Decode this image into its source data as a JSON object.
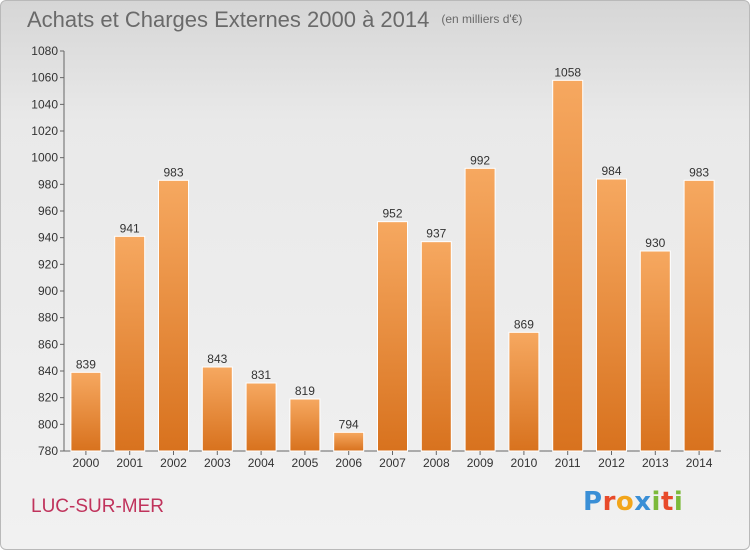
{
  "header": {
    "title": "Achats et Charges Externes 2000 à 2014",
    "subtitle": "(en milliers d'€)"
  },
  "footer": {
    "commune": "LUC-SUR-MER",
    "logo": [
      "P",
      "r",
      "o",
      "x",
      "i",
      "t",
      "i"
    ]
  },
  "colors": {
    "bar_top": "#f6a860",
    "bar_bottom": "#d8721e",
    "title": "#6a6a6a",
    "commune": "#c0335c"
  },
  "chart_data": {
    "type": "bar",
    "title": "Achats et Charges Externes 2000 à 2014",
    "subtitle": "(en milliers d'€)",
    "categories": [
      "2000",
      "2001",
      "2002",
      "2003",
      "2004",
      "2005",
      "2006",
      "2007",
      "2008",
      "2009",
      "2010",
      "2011",
      "2012",
      "2013",
      "2014"
    ],
    "values": [
      839,
      941,
      983,
      843,
      831,
      819,
      794,
      952,
      937,
      992,
      869,
      1058,
      984,
      930,
      983
    ],
    "ylim": [
      780,
      1080
    ],
    "yticks": [
      780,
      800,
      820,
      840,
      860,
      880,
      900,
      920,
      940,
      960,
      980,
      1000,
      1020,
      1040,
      1060,
      1080
    ],
    "grid": false,
    "data_labels": true
  }
}
